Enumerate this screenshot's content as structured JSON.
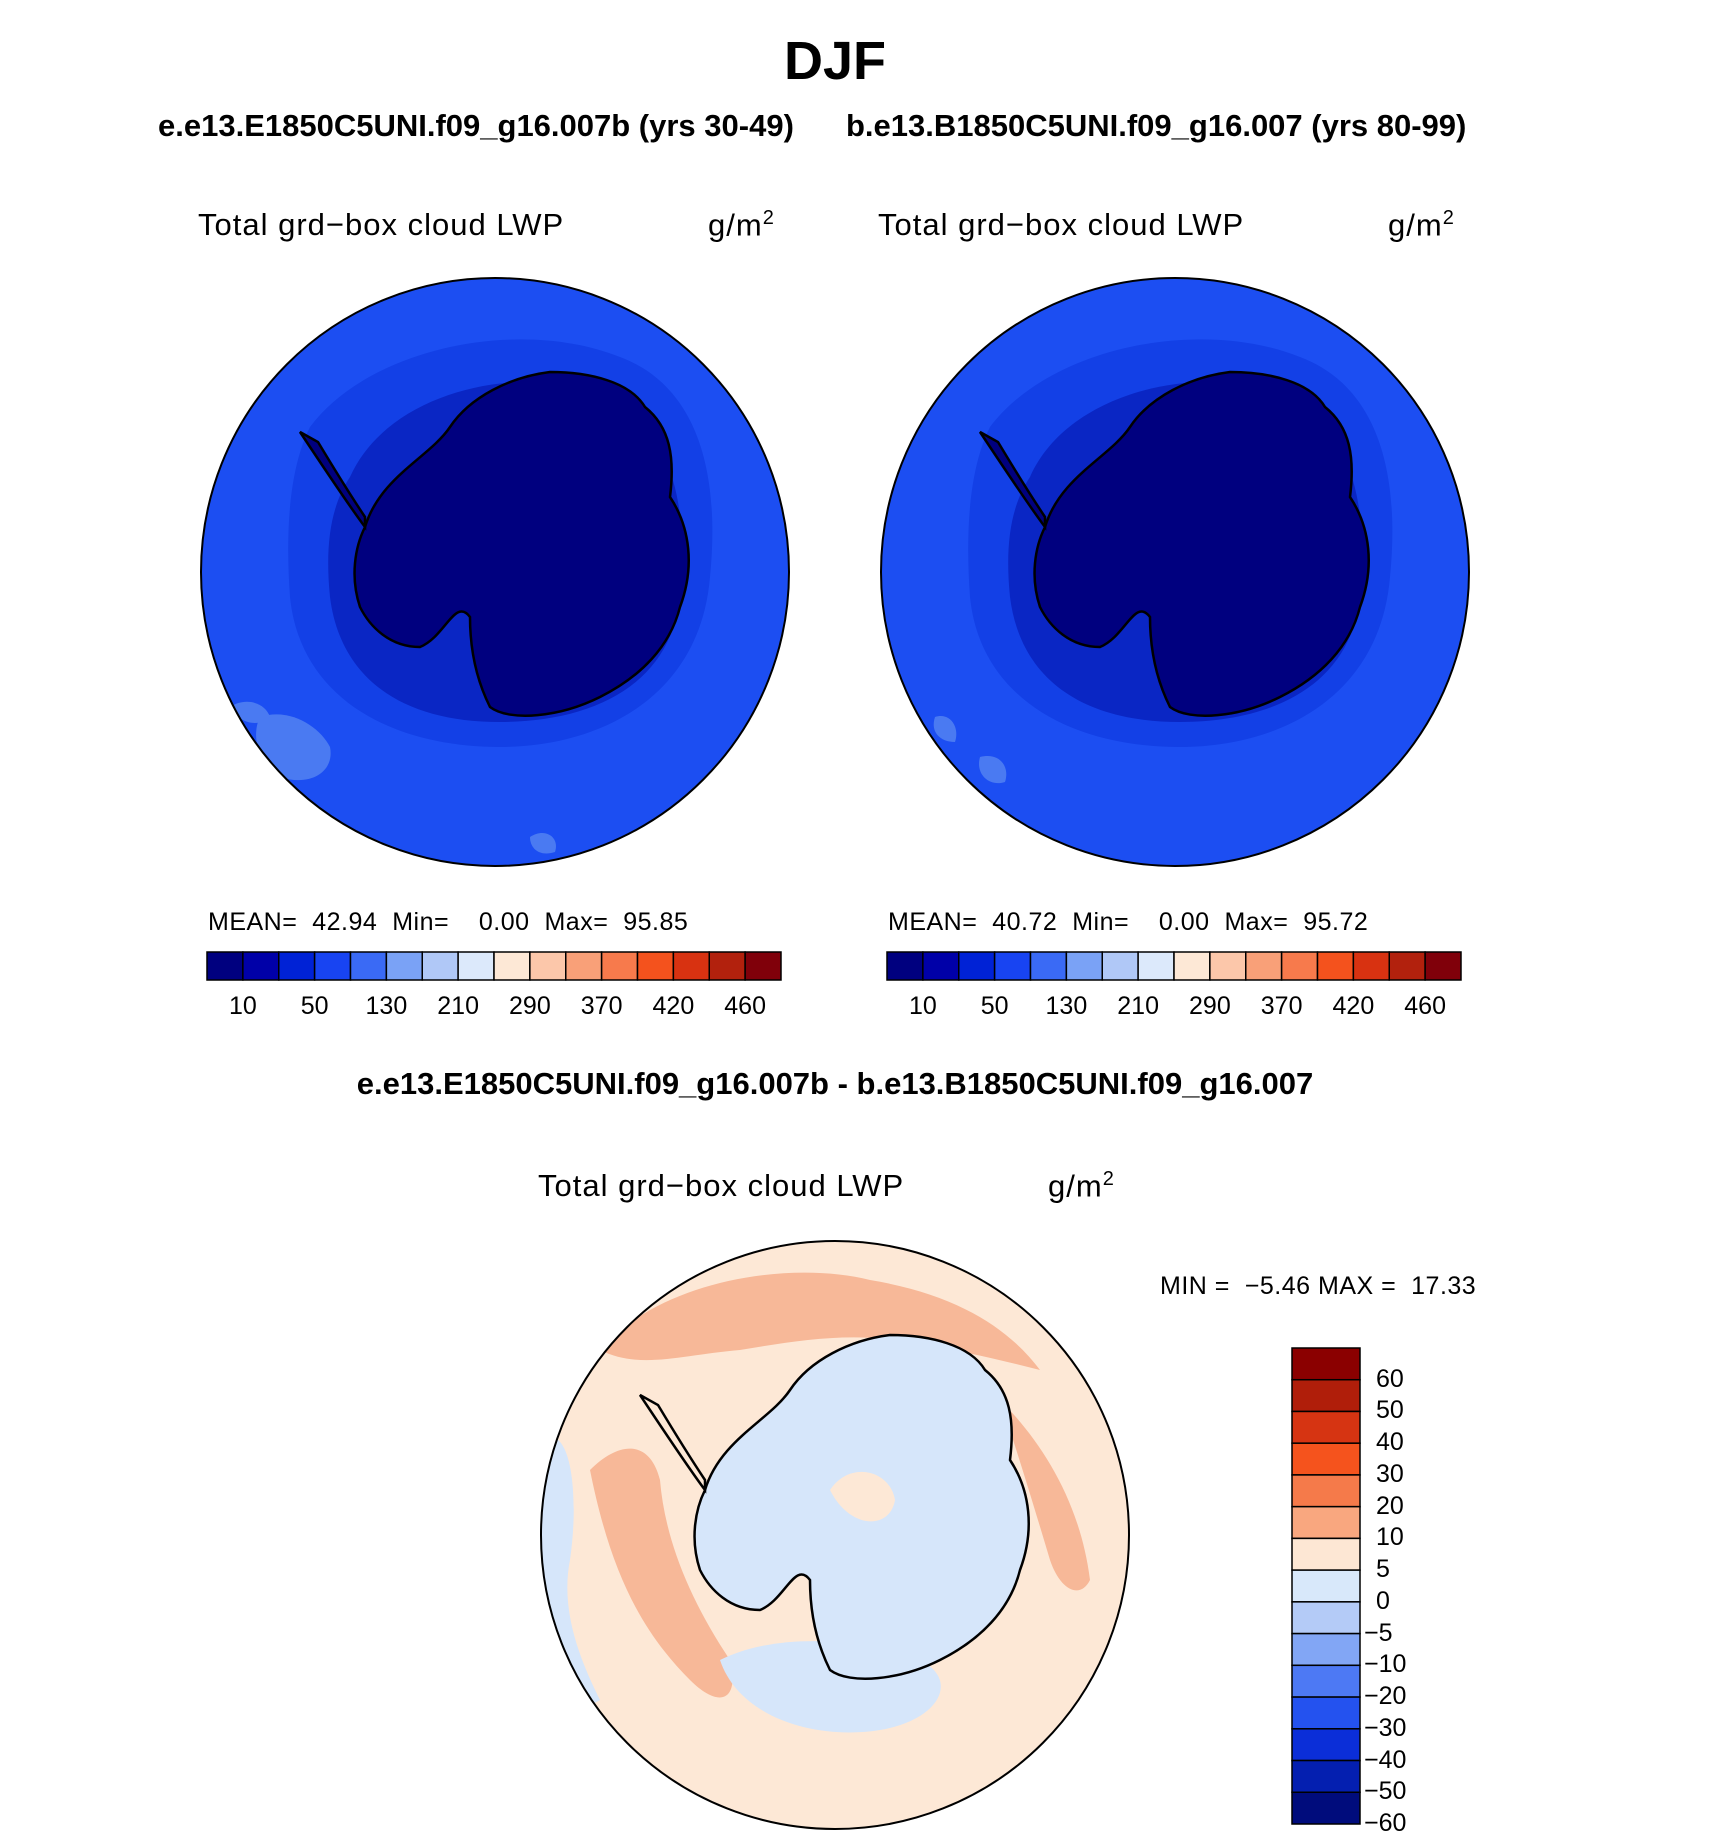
{
  "season": "DJF",
  "panels": [
    {
      "case_title": "e.e13.E1850C5UNI.f09_g16.007b (yrs 30-49)",
      "variable": "Total grd−box cloud LWP",
      "units_base": "g/m",
      "units_sup": "2",
      "stats": {
        "mean_label": "MEAN=",
        "mean": "42.94",
        "min_label": "Min=",
        "min": "0.00",
        "max_label": "Max=",
        "max": "95.85"
      }
    },
    {
      "case_title": "b.e13.B1850C5UNI.f09_g16.007 (yrs 80-99)",
      "variable": "Total grd−box cloud LWP",
      "units_base": "g/m",
      "units_sup": "2",
      "stats": {
        "mean_label": "MEAN=",
        "mean": "40.72",
        "min_label": "Min=",
        "min": "0.00",
        "max_label": "Max=",
        "max": "95.72"
      }
    }
  ],
  "abs_colorbar": {
    "colors": [
      "#00007f",
      "#0000a8",
      "#0022d6",
      "#1844f2",
      "#3a6af5",
      "#7aa2f6",
      "#b0c8f7",
      "#dce9fb",
      "#fde8d6",
      "#fcc7aa",
      "#f9a078",
      "#f77a4c",
      "#f4521d",
      "#d83211",
      "#b2210d",
      "#80000a"
    ],
    "tick_labels": [
      "10",
      "50",
      "130",
      "210",
      "290",
      "370",
      "420",
      "460"
    ]
  },
  "difference": {
    "title": "e.e13.E1850C5UNI.f09_g16.007b - b.e13.B1850C5UNI.f09_g16.007",
    "variable": "Total grd−box cloud LWP",
    "units_base": "g/m",
    "units_sup": "2",
    "minmax": {
      "min_label": "MIN =",
      "min": "−5.46",
      "max_label": "MAX =",
      "max": "17.33"
    }
  },
  "diff_colorbar": {
    "colors_top_to_bottom": [
      "#8b0000",
      "#b01e0a",
      "#d63412",
      "#f5531d",
      "#f57a4a",
      "#f9a77f",
      "#fde7d4",
      "#d8e8fa",
      "#b4cbf7",
      "#82a6f5",
      "#4d79f4",
      "#2452ef",
      "#0b2ed8",
      "#041fb0",
      "#000c7c"
    ],
    "tick_labels_top_to_bottom": [
      "60",
      "50",
      "40",
      "30",
      "20",
      "10",
      "5",
      "0",
      "−5",
      "−10",
      "−20",
      "−30",
      "−40",
      "−50",
      "−60"
    ]
  },
  "map_colors": {
    "ocean_outer": "#1c4ef2",
    "ocean_mid": "#0f34e0",
    "coastal": "#0a22b8",
    "land": "#00007f",
    "light_patch": "#4a7af2",
    "diff_base": "#fde8d6",
    "diff_pos": "#f7b898",
    "diff_neg": "#d6e6fa"
  }
}
